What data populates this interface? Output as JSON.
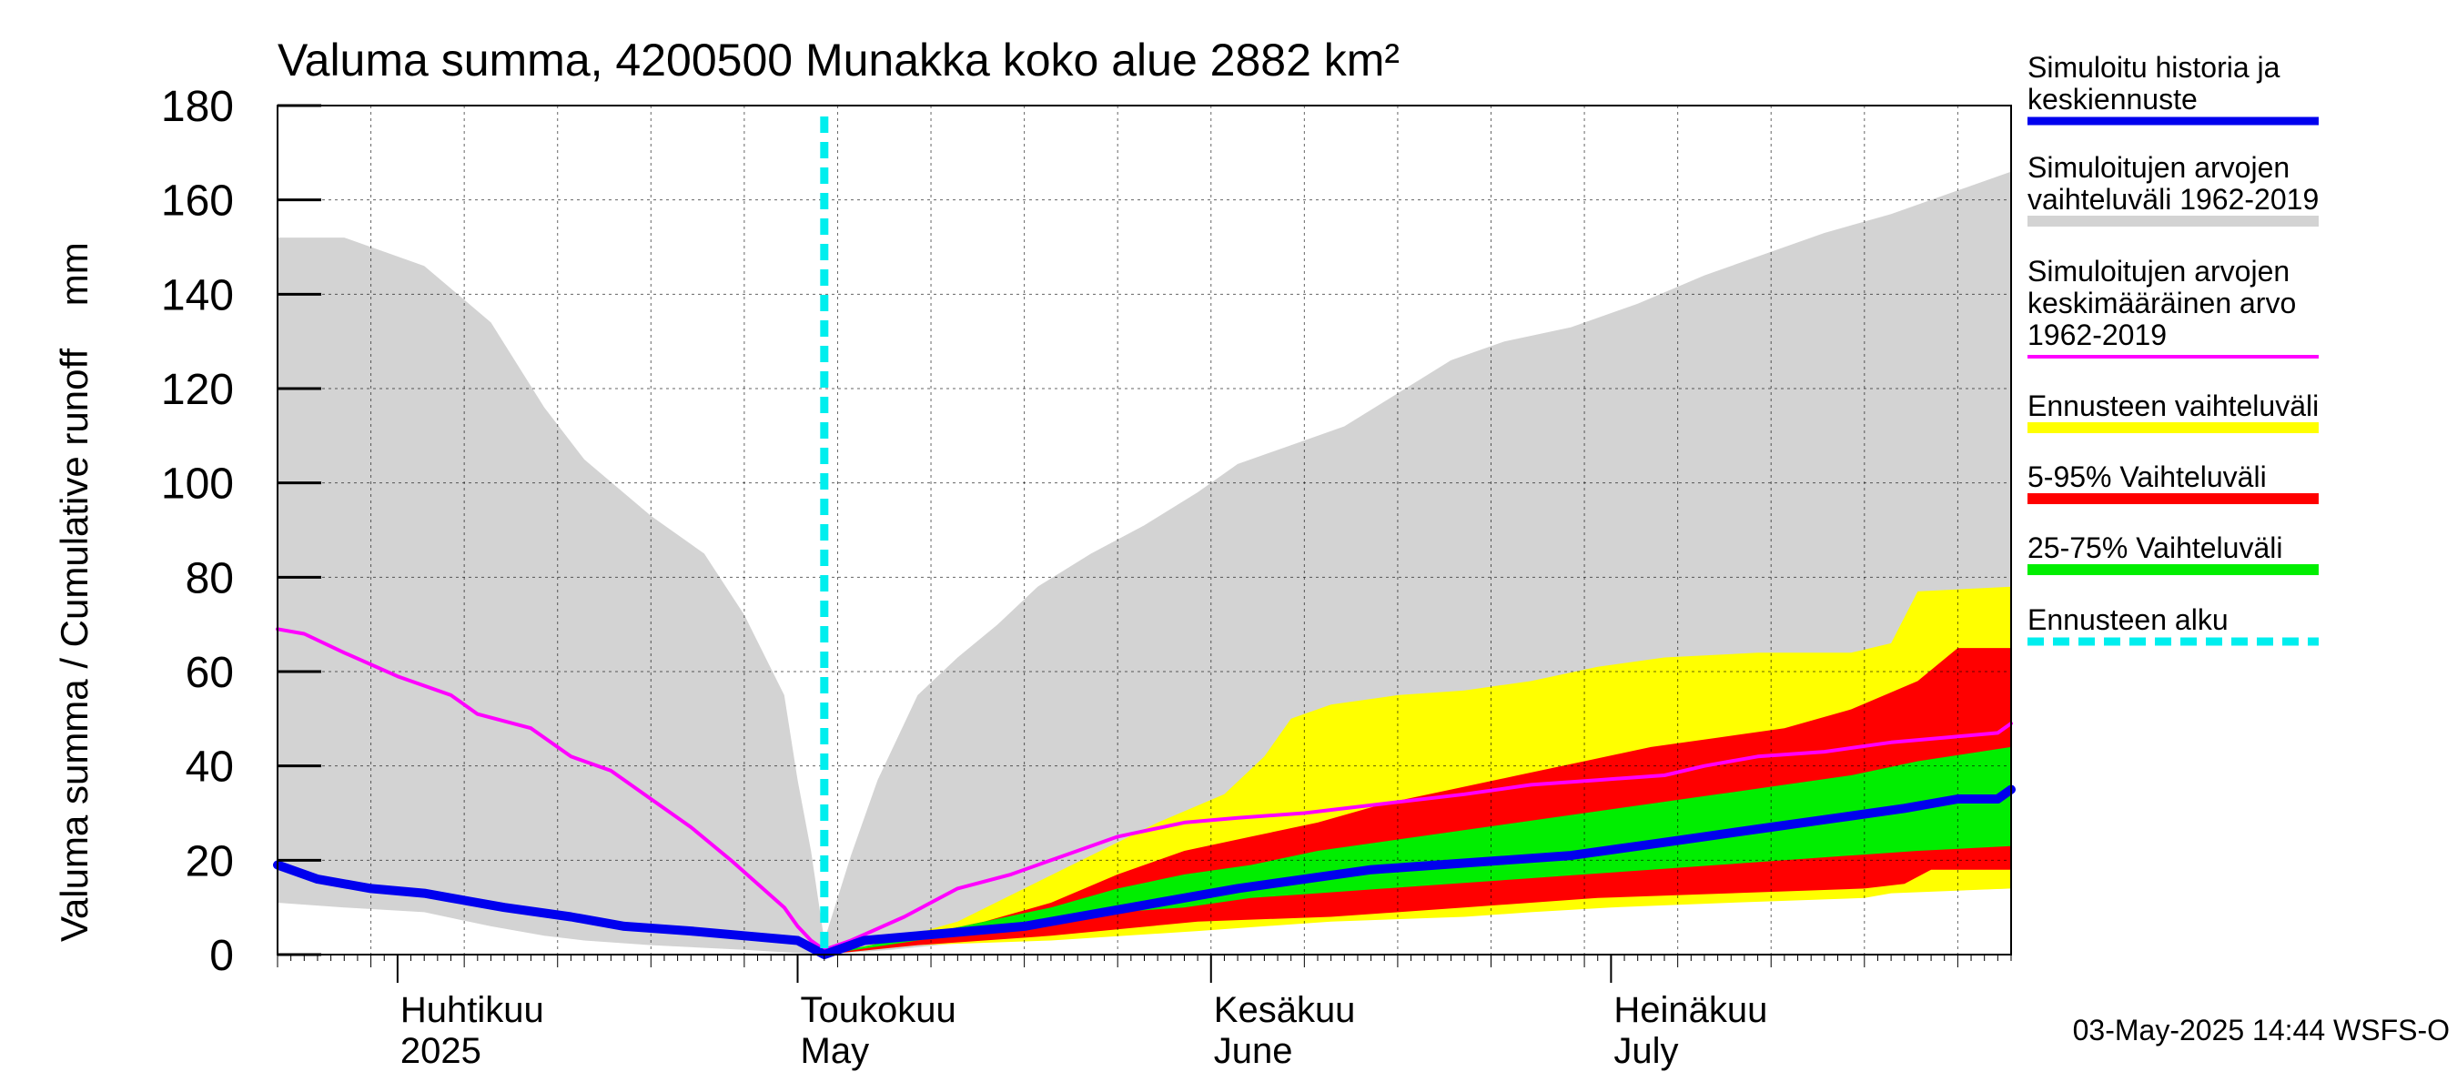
{
  "chart_data": {
    "type": "area",
    "title": "Valuma summa, 4200500 Munakka koko alue 2882 km²",
    "ylabel": "Valuma summa / Cumulative runoff    mm",
    "ylim": [
      0,
      180
    ],
    "y_ticks": [
      0,
      20,
      40,
      60,
      80,
      100,
      120,
      140,
      160,
      180
    ],
    "x_range": [
      "2025-03-23",
      "2025-07-31"
    ],
    "x_month_labels": [
      {
        "date": "2025-04-01",
        "fi": "Huhtikuu",
        "en": "2025"
      },
      {
        "date": "2025-05-01",
        "fi": "Toukokuu",
        "en": "May"
      },
      {
        "date": "2025-06-01",
        "fi": "Kesäkuu",
        "en": "June"
      },
      {
        "date": "2025-07-01",
        "fi": "Heinäkuu",
        "en": "July"
      }
    ],
    "forecast_start": "2025-05-03",
    "grid": true,
    "legend_position": "right",
    "legend": [
      {
        "label": "Simuloitu historia ja keskiennuste",
        "lines": [
          "Simuloitu historia ja",
          "keskiennuste"
        ],
        "color": "#0000ee",
        "style": "thick-line"
      },
      {
        "label": "Simuloitujen arvojen vaihteluväli 1962-2019",
        "lines": [
          "Simuloitujen arvojen",
          "vaihteluväli 1962-2019"
        ],
        "color": "#d3d3d3",
        "style": "band"
      },
      {
        "label": "Simuloitujen arvojen keskimääräinen arvo 1962-2019",
        "lines": [
          "Simuloitujen arvojen",
          "keskimääräinen arvo",
          "   1962-2019"
        ],
        "color": "#ff00ff",
        "style": "line"
      },
      {
        "label": "Ennusteen vaihteluväli",
        "lines": [
          "Ennusteen vaihteluväli"
        ],
        "color": "#ffff00",
        "style": "band"
      },
      {
        "label": "5-95% Vaihteluväli",
        "lines": [
          "5-95% Vaihteluväli"
        ],
        "color": "#ff0000",
        "style": "band"
      },
      {
        "label": "25-75% Vaihteluväli",
        "lines": [
          "25-75% Vaihteluväli"
        ],
        "color": "#00ee00",
        "style": "band"
      },
      {
        "label": "Ennusteen alku",
        "lines": [
          "Ennusteen alku"
        ],
        "color": "#00eeee",
        "style": "dashed"
      }
    ],
    "series": [
      {
        "name": "Simulated range 1962-2019",
        "upper": [
          [
            "2025-03-23",
            152
          ],
          [
            "2025-03-28",
            152
          ],
          [
            "2025-04-03",
            146
          ],
          [
            "2025-04-08",
            134
          ],
          [
            "2025-04-12",
            116
          ],
          [
            "2025-04-15",
            105
          ],
          [
            "2025-04-20",
            93
          ],
          [
            "2025-04-24",
            85
          ],
          [
            "2025-04-27",
            72
          ],
          [
            "2025-04-30",
            55
          ],
          [
            "2025-05-01",
            37
          ],
          [
            "2025-05-02",
            22
          ],
          [
            "2025-05-03",
            3
          ],
          [
            "2025-05-05",
            21
          ],
          [
            "2025-05-07",
            37
          ],
          [
            "2025-05-10",
            55
          ],
          [
            "2025-05-13",
            63
          ],
          [
            "2025-05-16",
            70
          ],
          [
            "2025-05-19",
            78
          ],
          [
            "2025-05-23",
            85
          ],
          [
            "2025-05-27",
            91
          ],
          [
            "2025-05-31",
            98
          ],
          [
            "2025-06-03",
            104
          ],
          [
            "2025-06-07",
            108
          ],
          [
            "2025-06-11",
            112
          ],
          [
            "2025-06-15",
            119
          ],
          [
            "2025-06-19",
            126
          ],
          [
            "2025-06-23",
            130
          ],
          [
            "2025-06-28",
            133
          ],
          [
            "2025-07-03",
            138
          ],
          [
            "2025-07-08",
            144
          ],
          [
            "2025-07-12",
            148
          ],
          [
            "2025-07-17",
            153
          ],
          [
            "2025-07-22",
            157
          ],
          [
            "2025-07-27",
            162
          ],
          [
            "2025-07-31",
            166
          ]
        ],
        "lower": [
          [
            "2025-03-23",
            11
          ],
          [
            "2025-03-28",
            10
          ],
          [
            "2025-04-03",
            9
          ],
          [
            "2025-04-08",
            6
          ],
          [
            "2025-04-12",
            4
          ],
          [
            "2025-04-15",
            3
          ],
          [
            "2025-04-20",
            2
          ],
          [
            "2025-04-27",
            1
          ],
          [
            "2025-05-03",
            0
          ],
          [
            "2025-05-08",
            1
          ],
          [
            "2025-05-15",
            3
          ],
          [
            "2025-05-22",
            5
          ],
          [
            "2025-05-31",
            7
          ],
          [
            "2025-06-08",
            8
          ],
          [
            "2025-06-15",
            9
          ],
          [
            "2025-06-22",
            10
          ],
          [
            "2025-07-01",
            11
          ],
          [
            "2025-07-10",
            12
          ],
          [
            "2025-07-20",
            13
          ],
          [
            "2025-07-31",
            14
          ]
        ]
      },
      {
        "name": "Forecast range",
        "upper": [
          [
            "2025-05-03",
            0
          ],
          [
            "2025-05-08",
            3
          ],
          [
            "2025-05-13",
            7
          ],
          [
            "2025-05-18",
            14
          ],
          [
            "2025-05-23",
            21
          ],
          [
            "2025-05-28",
            28
          ],
          [
            "2025-06-02",
            34
          ],
          [
            "2025-06-05",
            42
          ],
          [
            "2025-06-07",
            50
          ],
          [
            "2025-06-10",
            53
          ],
          [
            "2025-06-15",
            55
          ],
          [
            "2025-06-20",
            56
          ],
          [
            "2025-06-25",
            58
          ],
          [
            "2025-06-30",
            61
          ],
          [
            "2025-07-05",
            63
          ],
          [
            "2025-07-12",
            64
          ],
          [
            "2025-07-19",
            64
          ],
          [
            "2025-07-22",
            66
          ],
          [
            "2025-07-24",
            77
          ],
          [
            "2025-07-31",
            78
          ]
        ],
        "lower": [
          [
            "2025-05-03",
            0
          ],
          [
            "2025-05-10",
            2
          ],
          [
            "2025-05-20",
            3
          ],
          [
            "2025-05-31",
            5
          ],
          [
            "2025-06-10",
            7
          ],
          [
            "2025-06-20",
            8
          ],
          [
            "2025-06-25",
            9
          ],
          [
            "2025-07-01",
            10
          ],
          [
            "2025-07-10",
            11
          ],
          [
            "2025-07-20",
            12
          ],
          [
            "2025-07-22",
            13
          ],
          [
            "2025-07-31",
            14
          ]
        ]
      },
      {
        "name": "5-95% range",
        "upper": [
          [
            "2025-05-03",
            0
          ],
          [
            "2025-05-10",
            4
          ],
          [
            "2025-05-15",
            7
          ],
          [
            "2025-05-20",
            11
          ],
          [
            "2025-05-25",
            17
          ],
          [
            "2025-05-30",
            22
          ],
          [
            "2025-06-04",
            25
          ],
          [
            "2025-06-09",
            28
          ],
          [
            "2025-06-14",
            32
          ],
          [
            "2025-06-19",
            35
          ],
          [
            "2025-06-24",
            38
          ],
          [
            "2025-06-29",
            41
          ],
          [
            "2025-07-04",
            44
          ],
          [
            "2025-07-09",
            46
          ],
          [
            "2025-07-14",
            48
          ],
          [
            "2025-07-19",
            52
          ],
          [
            "2025-07-24",
            58
          ],
          [
            "2025-07-27",
            65
          ],
          [
            "2025-07-31",
            65
          ]
        ],
        "lower": [
          [
            "2025-05-03",
            0
          ],
          [
            "2025-05-10",
            2
          ],
          [
            "2025-05-20",
            4
          ],
          [
            "2025-05-31",
            7
          ],
          [
            "2025-06-10",
            8
          ],
          [
            "2025-06-20",
            10
          ],
          [
            "2025-06-30",
            12
          ],
          [
            "2025-07-10",
            13
          ],
          [
            "2025-07-20",
            14
          ],
          [
            "2025-07-23",
            15
          ],
          [
            "2025-07-25",
            18
          ],
          [
            "2025-07-31",
            18
          ]
        ]
      },
      {
        "name": "25-75% range",
        "upper": [
          [
            "2025-05-03",
            0
          ],
          [
            "2025-05-10",
            4
          ],
          [
            "2025-05-15",
            7
          ],
          [
            "2025-05-20",
            10
          ],
          [
            "2025-05-25",
            14
          ],
          [
            "2025-05-30",
            17
          ],
          [
            "2025-06-04",
            19
          ],
          [
            "2025-06-09",
            22
          ],
          [
            "2025-06-14",
            24
          ],
          [
            "2025-06-19",
            26
          ],
          [
            "2025-06-24",
            28
          ],
          [
            "2025-06-29",
            30
          ],
          [
            "2025-07-04",
            32
          ],
          [
            "2025-07-09",
            34
          ],
          [
            "2025-07-14",
            36
          ],
          [
            "2025-07-19",
            38
          ],
          [
            "2025-07-24",
            41
          ],
          [
            "2025-07-31",
            44
          ]
        ],
        "lower": [
          [
            "2025-05-03",
            0
          ],
          [
            "2025-05-10",
            3
          ],
          [
            "2025-05-15",
            5
          ],
          [
            "2025-05-20",
            7
          ],
          [
            "2025-05-25",
            9
          ],
          [
            "2025-05-30",
            10
          ],
          [
            "2025-06-04",
            12
          ],
          [
            "2025-06-09",
            13
          ],
          [
            "2025-06-14",
            14
          ],
          [
            "2025-06-19",
            15
          ],
          [
            "2025-06-24",
            16
          ],
          [
            "2025-06-29",
            17
          ],
          [
            "2025-07-04",
            18
          ],
          [
            "2025-07-09",
            19
          ],
          [
            "2025-07-14",
            20
          ],
          [
            "2025-07-19",
            21
          ],
          [
            "2025-07-24",
            22
          ],
          [
            "2025-07-31",
            23
          ]
        ]
      },
      {
        "name": "Simulated mean 1962-2019",
        "values": [
          [
            "2025-03-23",
            69
          ],
          [
            "2025-03-25",
            68
          ],
          [
            "2025-03-28",
            64
          ],
          [
            "2025-04-01",
            59
          ],
          [
            "2025-04-05",
            55
          ],
          [
            "2025-04-07",
            51
          ],
          [
            "2025-04-11",
            48
          ],
          [
            "2025-04-14",
            42
          ],
          [
            "2025-04-17",
            39
          ],
          [
            "2025-04-20",
            33
          ],
          [
            "2025-04-23",
            27
          ],
          [
            "2025-04-26",
            20
          ],
          [
            "2025-04-28",
            15
          ],
          [
            "2025-04-30",
            10
          ],
          [
            "2025-05-01",
            6
          ],
          [
            "2025-05-02",
            3
          ],
          [
            "2025-05-03",
            1
          ],
          [
            "2025-05-05",
            3
          ],
          [
            "2025-05-09",
            8
          ],
          [
            "2025-05-13",
            14
          ],
          [
            "2025-05-17",
            17
          ],
          [
            "2025-05-21",
            21
          ],
          [
            "2025-05-25",
            25
          ],
          [
            "2025-05-30",
            28
          ],
          [
            "2025-06-03",
            29
          ],
          [
            "2025-06-08",
            30
          ],
          [
            "2025-06-14",
            32
          ],
          [
            "2025-06-20",
            34
          ],
          [
            "2025-06-25",
            36
          ],
          [
            "2025-06-30",
            37
          ],
          [
            "2025-07-05",
            38
          ],
          [
            "2025-07-08",
            40
          ],
          [
            "2025-07-12",
            42
          ],
          [
            "2025-07-17",
            43
          ],
          [
            "2025-07-22",
            45
          ],
          [
            "2025-07-26",
            46
          ],
          [
            "2025-07-30",
            47
          ],
          [
            "2025-07-31",
            49
          ]
        ]
      },
      {
        "name": "Simulated history and median forecast",
        "values": [
          [
            "2025-03-23",
            19
          ],
          [
            "2025-03-26",
            16
          ],
          [
            "2025-03-30",
            14
          ],
          [
            "2025-04-03",
            13
          ],
          [
            "2025-04-05",
            12
          ],
          [
            "2025-04-09",
            10
          ],
          [
            "2025-04-14",
            8
          ],
          [
            "2025-04-18",
            6
          ],
          [
            "2025-04-23",
            5
          ],
          [
            "2025-04-27",
            4
          ],
          [
            "2025-05-01",
            3
          ],
          [
            "2025-05-03",
            0
          ],
          [
            "2025-05-06",
            3
          ],
          [
            "2025-05-10",
            4
          ],
          [
            "2025-05-14",
            5
          ],
          [
            "2025-05-18",
            6
          ],
          [
            "2025-05-22",
            8
          ],
          [
            "2025-05-26",
            10
          ],
          [
            "2025-05-30",
            12
          ],
          [
            "2025-06-03",
            14
          ],
          [
            "2025-06-08",
            16
          ],
          [
            "2025-06-13",
            18
          ],
          [
            "2025-06-18",
            19
          ],
          [
            "2025-06-23",
            20
          ],
          [
            "2025-06-28",
            21
          ],
          [
            "2025-07-03",
            23
          ],
          [
            "2025-07-08",
            25
          ],
          [
            "2025-07-13",
            27
          ],
          [
            "2025-07-18",
            29
          ],
          [
            "2025-07-23",
            31
          ],
          [
            "2025-07-27",
            33
          ],
          [
            "2025-07-30",
            33
          ],
          [
            "2025-07-31",
            35
          ]
        ]
      }
    ]
  },
  "footer": {
    "timestamp": "03-May-2025 14:44 WSFS-O"
  }
}
